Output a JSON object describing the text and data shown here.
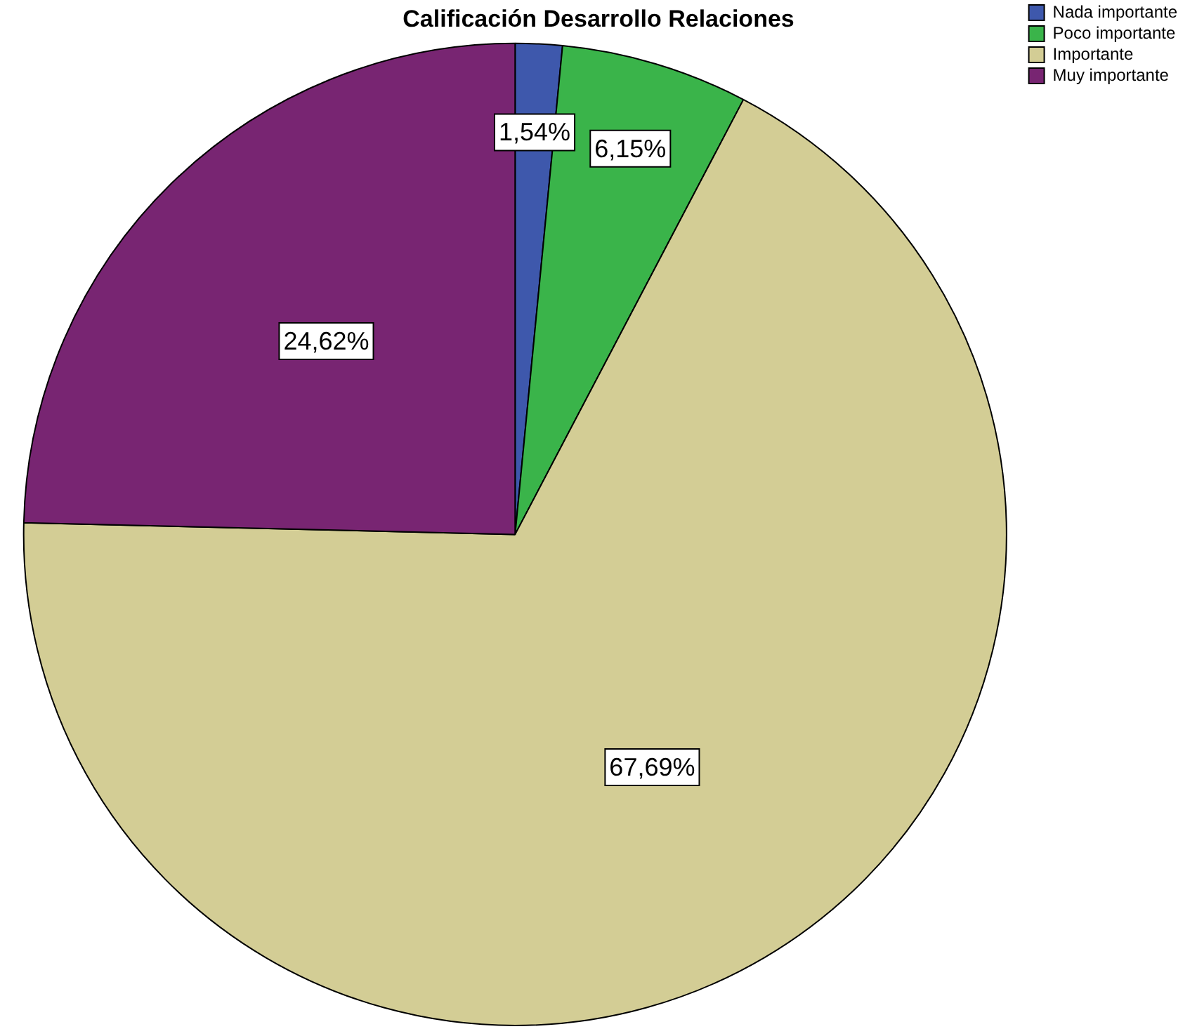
{
  "chart_data": {
    "type": "pie",
    "title": "Calificación Desarrollo Relaciones",
    "categories": [
      "Nada importante",
      "Poco importante",
      "Importante",
      "Muy importante"
    ],
    "values": [
      1.54,
      6.15,
      67.69,
      24.62
    ],
    "colors": [
      "#3e58ac",
      "#3ab44a",
      "#d3cd95",
      "#782572"
    ],
    "value_labels": [
      "1,54%",
      "6,15%",
      "67,69%",
      "24,62%"
    ],
    "legend": "top right"
  }
}
